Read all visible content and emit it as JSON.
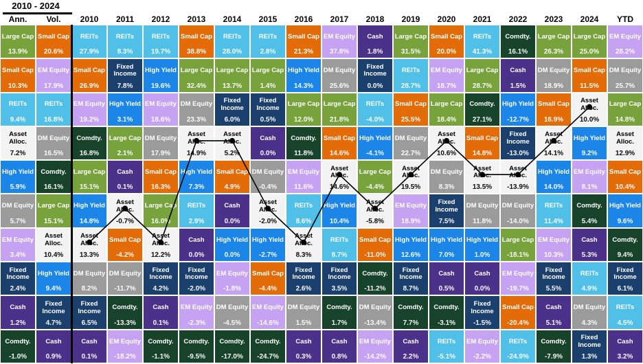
{
  "title": "2010 - 2024",
  "chart_data": {
    "type": "table",
    "subtype": "asset-class-returns-quilt",
    "title": "2010 - 2024",
    "column_headers": [
      "Ann.",
      "Vol.",
      "2010",
      "2011",
      "2012",
      "2013",
      "2014",
      "2015",
      "2016",
      "2017",
      "2018",
      "2019",
      "2020",
      "2021",
      "2022",
      "2023",
      "2024",
      "YTD"
    ],
    "columns": [
      {
        "label": "Ann.",
        "cells": [
          [
            "Large Cap",
            "13.9%"
          ],
          [
            "Small Cap",
            "10.3%"
          ],
          [
            "REITs",
            "9.4%"
          ],
          [
            "Asset Alloc.",
            "7.2%"
          ],
          [
            "High Yield",
            "5.9%"
          ],
          [
            "DM Equity",
            "5.7%"
          ],
          [
            "EM Equity",
            "3.4%"
          ],
          [
            "Fixed Income",
            "2.4%"
          ],
          [
            "Cash",
            "1.2%"
          ],
          [
            "Comdty.",
            "-1.0%"
          ]
        ]
      },
      {
        "label": "Vol.",
        "cells": [
          [
            "Small Cap",
            "20.6%"
          ],
          [
            "EM Equity",
            "17.9%"
          ],
          [
            "REITs",
            "16.8%"
          ],
          [
            "DM Equity",
            "16.5%"
          ],
          [
            "Comdty.",
            "16.1%"
          ],
          [
            "Large Cap",
            "15.1%"
          ],
          [
            "Asset Alloc.",
            "10.4%"
          ],
          [
            "High Yield",
            "9.4%"
          ],
          [
            "Fixed Income",
            "4.7%"
          ],
          [
            "Cash",
            "0.9%"
          ]
        ]
      },
      {
        "label": "2010",
        "cells": [
          [
            "REITs",
            "27.9%"
          ],
          [
            "Small Cap",
            "26.9%"
          ],
          [
            "EM Equity",
            "19.2%"
          ],
          [
            "Comdty.",
            "16.8%"
          ],
          [
            "Large Cap",
            "15.1%"
          ],
          [
            "High Yield",
            "14.8%"
          ],
          [
            "Asset Alloc.",
            "13.3%"
          ],
          [
            "DM Equity",
            "8.2%"
          ],
          [
            "Fixed Income",
            "6.5%"
          ],
          [
            "Cash",
            "0.1%"
          ]
        ]
      },
      {
        "label": "2011",
        "cells": [
          [
            "REITs",
            "8.3%"
          ],
          [
            "Fixed Income",
            "7.8%"
          ],
          [
            "High Yield",
            "3.1%"
          ],
          [
            "Large Cap",
            "2.1%"
          ],
          [
            "Cash",
            "0.1%"
          ],
          [
            "Asset Alloc.",
            "-0.7%"
          ],
          [
            "Small Cap",
            "-4.2%"
          ],
          [
            "DM Equity",
            "-11.7%"
          ],
          [
            "Comdty.",
            "-13.3%"
          ],
          [
            "EM Equity",
            "-18.2%"
          ]
        ]
      },
      {
        "label": "2012",
        "cells": [
          [
            "REITs",
            "19.7%"
          ],
          [
            "High Yield",
            "19.6%"
          ],
          [
            "EM Equity",
            "18.6%"
          ],
          [
            "DM Equity",
            "17.9%"
          ],
          [
            "Small Cap",
            "16.3%"
          ],
          [
            "Large Cap",
            "16.0%"
          ],
          [
            "Asset Alloc.",
            "12.2%"
          ],
          [
            "Fixed Income",
            "4.2%"
          ],
          [
            "Cash",
            "0.1%"
          ],
          [
            "Comdty.",
            "-1.1%"
          ]
        ]
      },
      {
        "label": "2013",
        "cells": [
          [
            "Small Cap",
            "38.8%"
          ],
          [
            "Large Cap",
            "32.4%"
          ],
          [
            "DM Equity",
            "23.3%"
          ],
          [
            "Asset Alloc.",
            "14.9%"
          ],
          [
            "High Yield",
            "7.3%"
          ],
          [
            "REITs",
            "2.9%"
          ],
          [
            "Cash",
            "0.0%"
          ],
          [
            "Fixed Income",
            "-2.0%"
          ],
          [
            "EM Equity",
            "-2.3%"
          ],
          [
            "Comdty.",
            "-9.5%"
          ]
        ]
      },
      {
        "label": "2014",
        "cells": [
          [
            "REITs",
            "28.0%"
          ],
          [
            "Large Cap",
            "13.7%"
          ],
          [
            "Fixed Income",
            "6.0%"
          ],
          [
            "Asset Alloc.",
            "5.2%"
          ],
          [
            "Small Cap",
            "4.9%"
          ],
          [
            "Cash",
            "0.0%"
          ],
          [
            "High Yield",
            "0.0%"
          ],
          [
            "EM Equity",
            "-1.8%"
          ],
          [
            "DM Equity",
            "-4.5%"
          ],
          [
            "Comdty.",
            "-17.0%"
          ]
        ]
      },
      {
        "label": "2015",
        "cells": [
          [
            "REITs",
            "2.8%"
          ],
          [
            "Large Cap",
            "1.4%"
          ],
          [
            "Fixed Income",
            "0.5%"
          ],
          [
            "Cash",
            "0.0%"
          ],
          [
            "DM Equity",
            "-0.4%"
          ],
          [
            "Asset Alloc.",
            "-2.0%"
          ],
          [
            "High Yield",
            "-2.7%"
          ],
          [
            "Small Cap",
            "-4.4%"
          ],
          [
            "EM Equity",
            "-14.6%"
          ],
          [
            "Comdty.",
            "-24.7%"
          ]
        ]
      },
      {
        "label": "2016",
        "cells": [
          [
            "Small Cap",
            "21.3%"
          ],
          [
            "High Yield",
            "14.3%"
          ],
          [
            "Large Cap",
            "12.0%"
          ],
          [
            "Comdty.",
            "11.8%"
          ],
          [
            "EM Equity",
            "11.6%"
          ],
          [
            "REITs",
            "8.6%"
          ],
          [
            "Asset Alloc.",
            "8.3%"
          ],
          [
            "Fixed Income",
            "2.6%"
          ],
          [
            "DM Equity",
            "1.5%"
          ],
          [
            "Cash",
            "0.3%"
          ]
        ]
      },
      {
        "label": "2017",
        "cells": [
          [
            "EM Equity",
            "37.8%"
          ],
          [
            "DM Equity",
            "25.6%"
          ],
          [
            "Large Cap",
            "21.8%"
          ],
          [
            "Small Cap",
            "14.6%"
          ],
          [
            "Asset Alloc.",
            "14.6%"
          ],
          [
            "High Yield",
            "10.4%"
          ],
          [
            "REITs",
            "8.7%"
          ],
          [
            "Fixed Income",
            "3.5%"
          ],
          [
            "Comdty.",
            "1.7%"
          ],
          [
            "Cash",
            "0.8%"
          ]
        ]
      },
      {
        "label": "2018",
        "cells": [
          [
            "Cash",
            "1.8%"
          ],
          [
            "Fixed Income",
            "0.0%"
          ],
          [
            "REITs",
            "-4.0%"
          ],
          [
            "High Yield",
            "-4.1%"
          ],
          [
            "Large Cap",
            "-4.4%"
          ],
          [
            "Asset Alloc.",
            "-5.8%"
          ],
          [
            "Small Cap",
            "-11.0%"
          ],
          [
            "Comdty.",
            "-11.2%"
          ],
          [
            "DM Equity",
            "-13.4%"
          ],
          [
            "EM Equity",
            "-14.2%"
          ]
        ]
      },
      {
        "label": "2019",
        "cells": [
          [
            "Large Cap",
            "31.5%"
          ],
          [
            "REITs",
            "28.7%"
          ],
          [
            "Small Cap",
            "25.5%"
          ],
          [
            "DM Equity",
            "22.7%"
          ],
          [
            "Asset Alloc.",
            "19.5%"
          ],
          [
            "EM Equity",
            "18.9%"
          ],
          [
            "High Yield",
            "12.6%"
          ],
          [
            "Fixed Income",
            "8.7%"
          ],
          [
            "Comdty.",
            "7.7%"
          ],
          [
            "Cash",
            "2.2%"
          ]
        ]
      },
      {
        "label": "2020",
        "cells": [
          [
            "Small Cap",
            "20.0%"
          ],
          [
            "EM Equity",
            "18.7%"
          ],
          [
            "Large Cap",
            "18.4%"
          ],
          [
            "Asset Alloc.",
            "10.6%"
          ],
          [
            "DM Equity",
            "8.3%"
          ],
          [
            "Fixed Income",
            "7.5%"
          ],
          [
            "High Yield",
            "7.0%"
          ],
          [
            "Cash",
            "0.5%"
          ],
          [
            "Comdty.",
            "-3.1%"
          ],
          [
            "REITs",
            "-5.1%"
          ]
        ]
      },
      {
        "label": "2021",
        "cells": [
          [
            "REITs",
            "41.3%"
          ],
          [
            "Large Cap",
            "28.7%"
          ],
          [
            "Comdty.",
            "27.1%"
          ],
          [
            "Small Cap",
            "14.8%"
          ],
          [
            "Asset Alloc.",
            "13.5%"
          ],
          [
            "DM Equity",
            "11.8%"
          ],
          [
            "High Yield",
            "1.0%"
          ],
          [
            "Cash",
            "0.0%"
          ],
          [
            "Fixed Income",
            "-1.5%"
          ],
          [
            "EM Equity",
            "-2.2%"
          ]
        ]
      },
      {
        "label": "2022",
        "cells": [
          [
            "Comdty.",
            "16.1%"
          ],
          [
            "Cash",
            "1.5%"
          ],
          [
            "High Yield",
            "-12.7%"
          ],
          [
            "Fixed Income",
            "-13.0%"
          ],
          [
            "Asset Alloc.",
            "-13.9%"
          ],
          [
            "DM Equity",
            "-14.0%"
          ],
          [
            "Large Cap",
            "-18.1%"
          ],
          [
            "EM Equity",
            "-19.7%"
          ],
          [
            "Small Cap",
            "-20.4%"
          ],
          [
            "REITs",
            "-24.9%"
          ]
        ]
      },
      {
        "label": "2023",
        "cells": [
          [
            "Large Cap",
            "26.3%"
          ],
          [
            "DM Equity",
            "18.9%"
          ],
          [
            "Small Cap",
            "16.9%"
          ],
          [
            "Asset Alloc.",
            "14.1%"
          ],
          [
            "High Yield",
            "14.0%"
          ],
          [
            "REITs",
            "11.4%"
          ],
          [
            "EM Equity",
            "10.3%"
          ],
          [
            "Fixed Income",
            "5.5%"
          ],
          [
            "Cash",
            "5.1%"
          ],
          [
            "Comdty.",
            "-7.9%"
          ]
        ]
      },
      {
        "label": "2024",
        "cells": [
          [
            "Large Cap",
            "25.0%"
          ],
          [
            "Small Cap",
            "11.5%"
          ],
          [
            "Asset Alloc.",
            "10.0%"
          ],
          [
            "High Yield",
            "9.2%"
          ],
          [
            "EM Equity",
            "8.1%"
          ],
          [
            "Comdty.",
            "5.4%"
          ],
          [
            "Cash",
            "5.3%"
          ],
          [
            "REITs",
            "4.9%"
          ],
          [
            "DM Equity",
            "4.3%"
          ],
          [
            "Fixed Income",
            "1.3%"
          ]
        ]
      },
      {
        "label": "YTD",
        "cells": [
          [
            "EM Equity",
            "28.2%"
          ],
          [
            "DM Equity",
            "25.7%"
          ],
          [
            "Large Cap",
            "14.8%"
          ],
          [
            "Asset Alloc.",
            "12.9%"
          ],
          [
            "Small Cap",
            "10.4%"
          ],
          [
            "High Yield",
            "9.6%"
          ],
          [
            "Comdty.",
            "9.4%"
          ],
          [
            "Fixed Income",
            "6.1%"
          ],
          [
            "REITs",
            "4.5%"
          ],
          [
            "Cash",
            "3.2%"
          ]
        ]
      }
    ],
    "asset_colors": {
      "Large Cap": "#78A23C",
      "Small Cap": "#E36C09",
      "REITs": "#50C0E8",
      "EM Equity": "#C6A3F2",
      "DM Equity": "#9B9B9B",
      "Fixed Income": "#1C406E",
      "High Yield": "#1C86E8",
      "Cash": "#4B3189",
      "Comdty.": "#17432A",
      "Asset Alloc.": "#F3F3F3"
    },
    "text_colors": {
      "default": "#FFFFFF",
      "Asset Alloc.": "#000000"
    },
    "asset_alloc_line": {
      "color": "#000000",
      "marker": "dot",
      "points": [
        [
          "2010",
          7
        ],
        [
          "2011",
          6
        ],
        [
          "2012",
          7
        ],
        [
          "2013",
          4
        ],
        [
          "2014",
          4
        ],
        [
          "2015",
          6
        ],
        [
          "2016",
          7
        ],
        [
          "2017",
          5
        ],
        [
          "2018",
          6
        ],
        [
          "2019",
          5
        ],
        [
          "2020",
          4
        ],
        [
          "2021",
          5
        ],
        [
          "2022",
          5
        ],
        [
          "2023",
          4
        ],
        [
          "2024",
          3
        ]
      ]
    }
  }
}
